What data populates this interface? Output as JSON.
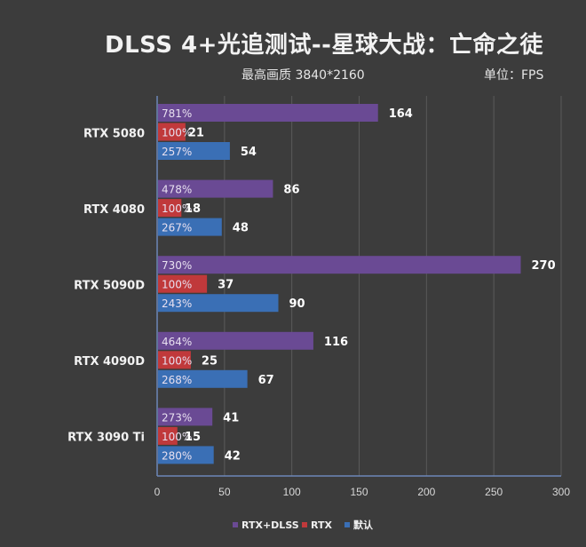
{
  "chart_data": {
    "type": "bar",
    "orientation": "horizontal",
    "title": "DLSS 4+光追测试--星球大战：亡命之徒",
    "subtitle": "最高画质 3840*2160",
    "unit_label": "单位：FPS",
    "xlabel": "",
    "ylabel": "",
    "xlim": [
      0,
      300
    ],
    "xticks": [
      "0",
      "50",
      "100",
      "150",
      "200",
      "250",
      "300"
    ],
    "grid": true,
    "legend_position": "bottom",
    "categories": [
      "RTX 5080",
      "RTX 4080",
      "RTX 5090D",
      "RTX 4090D",
      "RTX 3090 Ti"
    ],
    "series": [
      {
        "name": "RTX+DLSS",
        "color": "#6a4a94",
        "values": [
          164,
          86,
          270,
          116,
          41
        ],
        "labels": [
          "781%",
          "478%",
          "730%",
          "464%",
          "273%"
        ]
      },
      {
        "name": "RTX",
        "color": "#c0393b",
        "values": [
          21,
          18,
          37,
          25,
          15
        ],
        "labels": [
          "100%",
          "100%",
          "100%",
          "100%",
          "100%"
        ]
      },
      {
        "name": "默认",
        "color": "#3a6fb5",
        "values": [
          54,
          48,
          90,
          67,
          42
        ],
        "labels": [
          "257%",
          "267%",
          "243%",
          "268%",
          "280%"
        ]
      }
    ]
  }
}
